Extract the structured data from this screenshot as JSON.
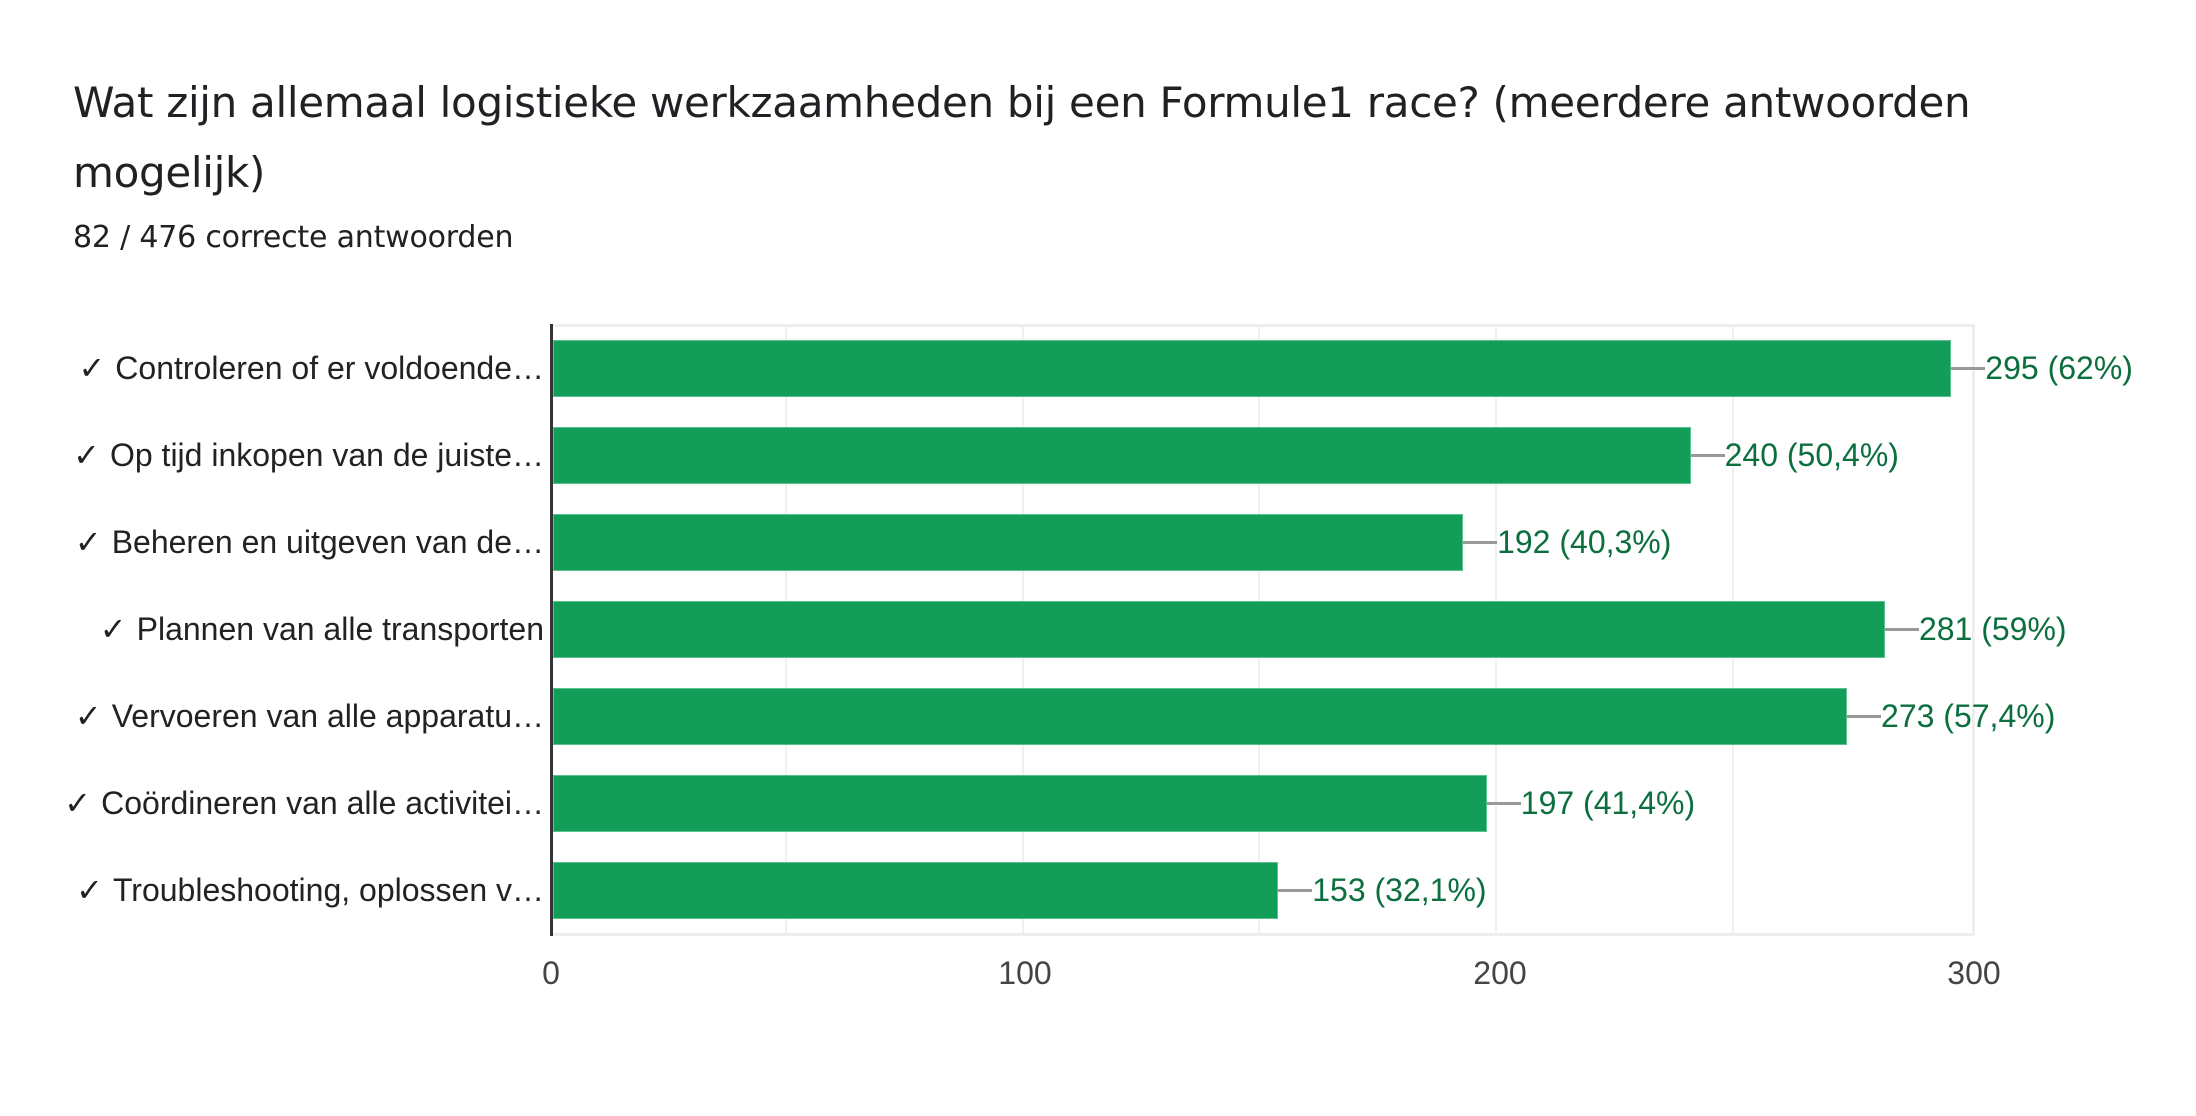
{
  "question": {
    "title": "Wat zijn allemaal logistieke werkzaamheden bij een Formule1 race? (meerdere antwoorden mogelijk)",
    "subtitle": "82 / 476 correcte antwoorden"
  },
  "icons": {
    "check": "✓"
  },
  "colors": {
    "bar": "#129e59",
    "value_label": "#0b6f3e",
    "leader": "#999999"
  },
  "chart_data": {
    "type": "bar",
    "orientation": "horizontal",
    "title": "Wat zijn allemaal logistieke werkzaamheden bij een Formule1 race? (meerdere antwoorden mogelijk)",
    "subtitle": "82 / 476 correcte antwoorden",
    "xlabel": "",
    "ylabel": "",
    "xlim": [
      0,
      300
    ],
    "xticks": [
      "0",
      "100",
      "200",
      "300"
    ],
    "grid": true,
    "legend": "none",
    "categories": [
      "✓ Controleren of er voldoende…",
      "✓ Op tijd inkopen van de juiste…",
      "✓ Beheren en uitgeven van de…",
      "✓ Plannen van alle transporten",
      "✓ Vervoeren van alle apparatu…",
      "✓ Coördineren van alle activitei…",
      "✓ Troubleshooting, oplossen v…"
    ],
    "values": [
      295,
      240,
      192,
      281,
      273,
      197,
      153
    ],
    "percentages": [
      "62%",
      "50,4%",
      "40,3%",
      "59%",
      "57,4%",
      "41,4%",
      "32,1%"
    ],
    "data_labels": [
      "295 (62%)",
      "240 (50,4%)",
      "192 (40,3%)",
      "281 (59%)",
      "273 (57,4%)",
      "197 (41,4%)",
      "153 (32,1%)"
    ]
  },
  "rows": [
    {
      "label": "Controleren of er voldoende…",
      "value": 295,
      "value_label": "295 (62%)"
    },
    {
      "label": "Op tijd inkopen van de juiste…",
      "value": 240,
      "value_label": "240 (50,4%)"
    },
    {
      "label": "Beheren en uitgeven van de…",
      "value": 192,
      "value_label": "192 (40,3%)"
    },
    {
      "label": "Plannen van alle transporten",
      "value": 281,
      "value_label": "281 (59%)"
    },
    {
      "label": "Vervoeren van alle apparatu…",
      "value": 273,
      "value_label": "273 (57,4%)"
    },
    {
      "label": "Coördineren van alle activitei…",
      "value": 197,
      "value_label": "197 (41,4%)"
    },
    {
      "label": "Troubleshooting, oplossen v…",
      "value": 153,
      "value_label": "153 (32,1%)"
    }
  ],
  "axis": {
    "ticks": [
      "0",
      "100",
      "200",
      "300"
    ],
    "max": 300
  }
}
